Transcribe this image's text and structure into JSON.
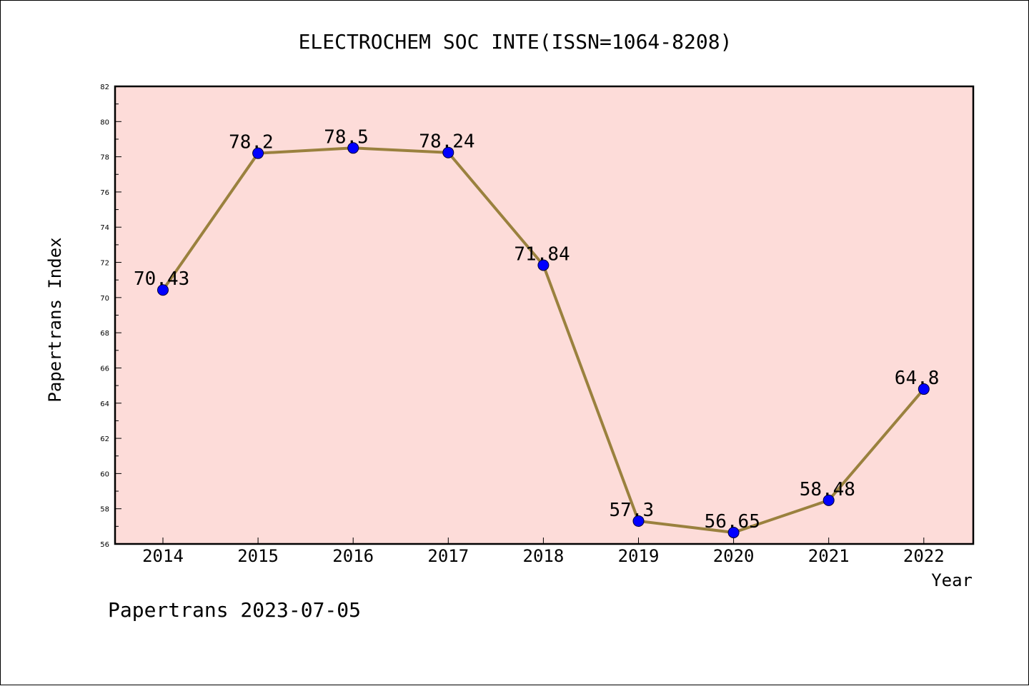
{
  "chart_data": {
    "type": "line",
    "title": "ELECTROCHEM SOC INTE(ISSN=1064-8208)",
    "xlabel": "Year",
    "ylabel": "Papertrans Index",
    "categories": [
      "2014",
      "2015",
      "2016",
      "2017",
      "2018",
      "2019",
      "2020",
      "2021",
      "2022"
    ],
    "series": [
      {
        "values": [
          70.43,
          78.2,
          78.5,
          78.24,
          71.84,
          57.3,
          56.65,
          58.48,
          64.8
        ],
        "labels": [
          "70.43",
          "78.2",
          "78.5",
          "78.24",
          "71.84",
          "57.3",
          "56.65",
          "58.48",
          "64.8"
        ]
      }
    ],
    "ylim": [
      56,
      82
    ],
    "yticks": [
      "56",
      "58",
      "60",
      "62",
      "64",
      "66",
      "68",
      "70",
      "72",
      "74",
      "76",
      "78",
      "80",
      "82"
    ],
    "grid": false,
    "colors": {
      "plot_background": "#fddcd9",
      "line": "#9a813e",
      "marker": "#0000ff"
    }
  },
  "footer": "Papertrans 2023-07-05"
}
